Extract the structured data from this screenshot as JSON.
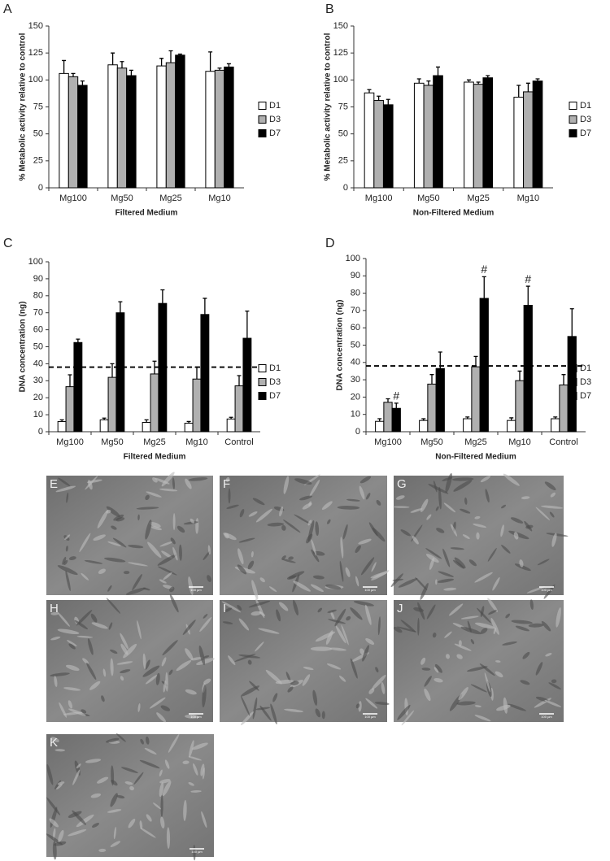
{
  "chart_data": [
    {
      "type": "bar",
      "panel": "A",
      "ylabel": "% Metabolic activity relative to control",
      "xlabel": "Filtered Medium",
      "categories": [
        "Mg100",
        "Mg50",
        "Mg25",
        "Mg10"
      ],
      "ylim": [
        0,
        150
      ],
      "yticks": [
        0,
        25,
        50,
        75,
        100,
        125,
        150
      ],
      "series": [
        {
          "name": "D1",
          "color": "#ffffff",
          "values": [
            106,
            114,
            113,
            108
          ],
          "errors": [
            12,
            11,
            7,
            18
          ]
        },
        {
          "name": "D3",
          "color": "#b0b0b0",
          "values": [
            103,
            111,
            116,
            109
          ],
          "errors": [
            3,
            6,
            11,
            2
          ]
        },
        {
          "name": "D7",
          "color": "#000000",
          "values": [
            95,
            104,
            123,
            112
          ],
          "errors": [
            4,
            5,
            1,
            3
          ]
        }
      ]
    },
    {
      "type": "bar",
      "panel": "B",
      "ylabel": "% Metabolic activity relative to control",
      "xlabel": "Non-Filtered Medium",
      "categories": [
        "Mg100",
        "Mg50",
        "Mg25",
        "Mg10"
      ],
      "ylim": [
        0,
        150
      ],
      "yticks": [
        0,
        25,
        50,
        75,
        100,
        125,
        150
      ],
      "series": [
        {
          "name": "D1",
          "color": "#ffffff",
          "values": [
            88,
            97,
            98,
            84
          ],
          "errors": [
            3,
            4,
            2,
            11
          ]
        },
        {
          "name": "D3",
          "color": "#b0b0b0",
          "values": [
            81,
            95,
            96,
            89
          ],
          "errors": [
            4,
            4,
            2,
            8
          ]
        },
        {
          "name": "D7",
          "color": "#000000",
          "values": [
            77,
            104,
            102,
            99
          ],
          "errors": [
            5,
            8,
            2,
            2
          ]
        }
      ]
    },
    {
      "type": "bar",
      "panel": "C",
      "ylabel": "DNA concentration (ng)",
      "xlabel": "Filtered Medium",
      "categories": [
        "Mg100",
        "Mg50",
        "Mg25",
        "Mg10",
        "Control"
      ],
      "ylim": [
        0,
        100
      ],
      "yticks": [
        0,
        10,
        20,
        30,
        40,
        50,
        60,
        70,
        80,
        90,
        100
      ],
      "hline": 38,
      "series": [
        {
          "name": "D1",
          "color": "#ffffff",
          "values": [
            6,
            7,
            5.5,
            5,
            7.5
          ],
          "errors": [
            1,
            1,
            1.5,
            1,
            1
          ]
        },
        {
          "name": "D3",
          "color": "#b0b0b0",
          "values": [
            26.5,
            32,
            34,
            31,
            27
          ],
          "errors": [
            7,
            8,
            7.5,
            7,
            6
          ]
        },
        {
          "name": "D7",
          "color": "#000000",
          "values": [
            52.5,
            70,
            75.5,
            69,
            55
          ],
          "errors": [
            2,
            6.5,
            8,
            9.5,
            16
          ]
        }
      ]
    },
    {
      "type": "bar",
      "panel": "D",
      "ylabel": "DNA concentration (ng)",
      "xlabel": "Non-Filtered Medium",
      "categories": [
        "Mg100",
        "Mg50",
        "Mg25",
        "Mg10",
        "Control"
      ],
      "ylim": [
        0,
        100
      ],
      "yticks": [
        0,
        10,
        20,
        30,
        40,
        50,
        60,
        70,
        80,
        90,
        100
      ],
      "hline": 38,
      "annotations": [
        {
          "text": "#",
          "category": "Mg100",
          "series": "D7"
        },
        {
          "text": "#",
          "category": "Mg25",
          "series": "D7"
        },
        {
          "text": "#",
          "category": "Mg10",
          "series": "D7"
        }
      ],
      "series": [
        {
          "name": "D1",
          "color": "#ffffff",
          "values": [
            6,
            6.5,
            7.5,
            6.5,
            7.5
          ],
          "errors": [
            1.5,
            1,
            1,
            1.5,
            1
          ]
        },
        {
          "name": "D3",
          "color": "#b0b0b0",
          "values": [
            17,
            27.5,
            37.5,
            29.5,
            27
          ],
          "errors": [
            2,
            5.5,
            6,
            5.5,
            6
          ]
        },
        {
          "name": "D7",
          "color": "#000000",
          "values": [
            13.5,
            36.5,
            77,
            73,
            55
          ],
          "errors": [
            3,
            9.5,
            12.5,
            11,
            16
          ]
        }
      ]
    }
  ],
  "micrographs": [
    {
      "label": "E",
      "scale_bar": "100 µm"
    },
    {
      "label": "F",
      "scale_bar": "100 µm"
    },
    {
      "label": "G",
      "scale_bar": "100 µm"
    },
    {
      "label": "H",
      "scale_bar": "100 µm"
    },
    {
      "label": "I",
      "scale_bar": "100 µm"
    },
    {
      "label": "J",
      "scale_bar": "100 µm"
    },
    {
      "label": "K",
      "scale_bar": "100 µm"
    }
  ]
}
